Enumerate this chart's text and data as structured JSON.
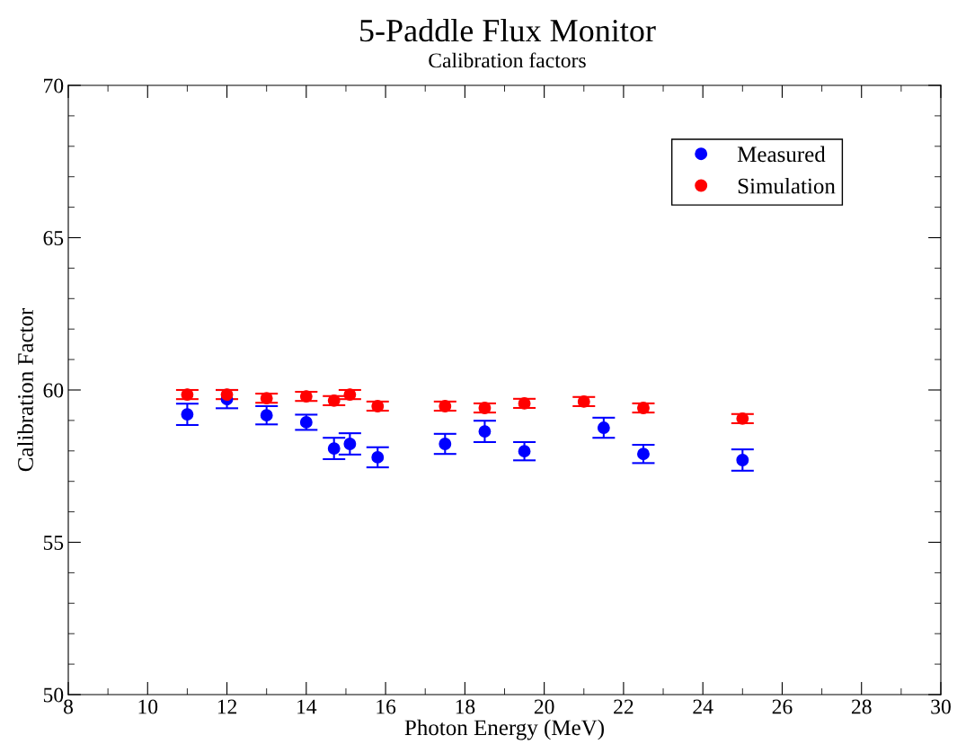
{
  "chart_data": {
    "type": "scatter",
    "title": "5-Paddle Flux Monitor",
    "subtitle": "Calibration factors",
    "xlabel": "Photon Energy (MeV)",
    "ylabel": "Calibration Factor",
    "xlim": [
      8,
      30
    ],
    "xticks": [
      8,
      10,
      12,
      14,
      16,
      18,
      20,
      22,
      24,
      26,
      28,
      30
    ],
    "ylim": [
      50,
      70
    ],
    "yticks": [
      50,
      55,
      60,
      65,
      70
    ],
    "grid": false,
    "legend": "top right",
    "marker": "circle",
    "series": [
      {
        "name": "Measured",
        "color": "#0000ff",
        "x": [
          11,
          12,
          13,
          14,
          14.7,
          15.1,
          15.8,
          17.5,
          18.5,
          19.5,
          21.5,
          22.5,
          25
        ],
        "values": [
          59.2,
          59.7,
          59.17,
          58.94,
          58.08,
          58.23,
          57.79,
          58.23,
          58.64,
          57.99,
          58.76,
          57.9,
          57.7
        ],
        "errors": [
          0.35,
          0.3,
          0.3,
          0.25,
          0.35,
          0.35,
          0.33,
          0.33,
          0.35,
          0.3,
          0.33,
          0.3,
          0.35
        ]
      },
      {
        "name": "Simulation",
        "color": "#ff0000",
        "x": [
          11,
          12,
          13,
          14,
          14.7,
          15.1,
          15.8,
          17.5,
          18.5,
          19.5,
          21,
          22.5,
          25
        ],
        "values": [
          59.85,
          59.85,
          59.73,
          59.79,
          59.65,
          59.85,
          59.47,
          59.47,
          59.41,
          59.56,
          59.62,
          59.41,
          59.06
        ],
        "errors": [
          0.15,
          0.15,
          0.15,
          0.15,
          0.15,
          0.15,
          0.15,
          0.15,
          0.15,
          0.15,
          0.15,
          0.15,
          0.15
        ]
      }
    ]
  }
}
